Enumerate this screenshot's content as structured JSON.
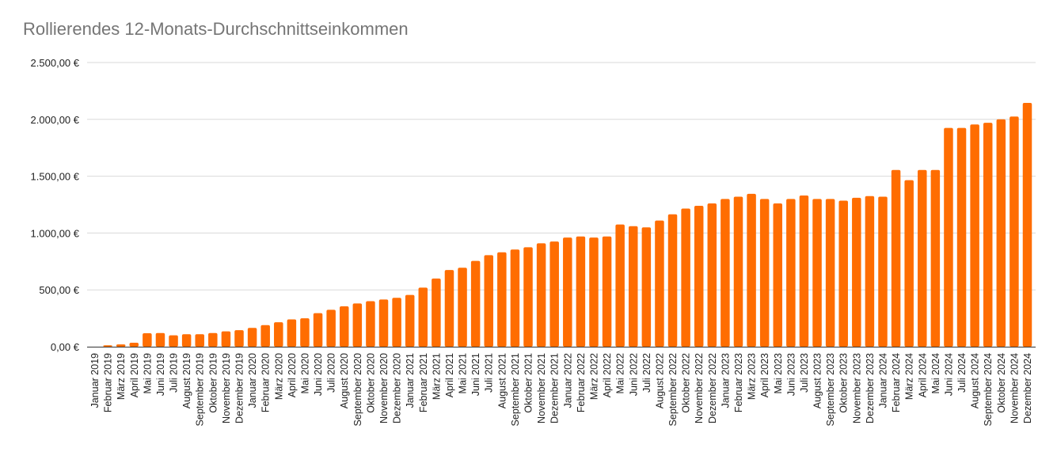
{
  "chart_data": {
    "type": "bar",
    "title": "Rollierendes 12-Monats-Durchschnittseinkommen",
    "xlabel": "",
    "ylabel": "",
    "ylim": [
      0,
      2500
    ],
    "y_ticks": [
      0,
      500,
      1000,
      1500,
      2000,
      2500
    ],
    "y_tick_labels": [
      "0,00 €",
      "500,00 €",
      "1.000,00 €",
      "1.500,00 €",
      "2.000,00 €",
      "2.500,00 €"
    ],
    "grid": true,
    "legend": "none",
    "bar_color": "#ff6d01",
    "categories": [
      "Januar 2019",
      "Februar 2019",
      "März 2019",
      "April 2019",
      "Mai 2019",
      "Juni 2019",
      "Juli 2019",
      "August 2019",
      "September 2019",
      "Oktober 2019",
      "November 2019",
      "Dezember 2019",
      "Januar 2020",
      "Februar 2020",
      "März 2020",
      "April 2020",
      "Mai 2020",
      "Juni 2020",
      "Juli 2020",
      "August 2020",
      "September 2020",
      "Oktober 2020",
      "November 2020",
      "Dezember 2020",
      "Januar 2021",
      "Februar 2021",
      "März 2021",
      "April 2021",
      "Mai 2021",
      "Juni 2021",
      "Juli 2021",
      "August 2021",
      "September 2021",
      "Oktober 2021",
      "November 2021",
      "Dezember 2021",
      "Januar 2022",
      "Februar 2022",
      "März 2022",
      "April 2022",
      "Mai 2022",
      "Juni 2022",
      "Juli 2022",
      "August 2022",
      "September 2022",
      "Oktober 2022",
      "November 2022",
      "Dezember 2022",
      "Januar 2023",
      "Februar 2023",
      "März 2023",
      "April 2023",
      "Mai 2023",
      "Juni 2023",
      "Juli 2023",
      "August 2023",
      "September 2023",
      "Oktober 2023",
      "November 2023",
      "Dezember 2023",
      "Januar 2024",
      "Februar 2024",
      "März 2024",
      "April 2024",
      "Mai 2024",
      "Juni 2024",
      "Juli 2024",
      "August 2024",
      "September 2024",
      "Oktober 2024",
      "November 2024",
      "Dezember 2024"
    ],
    "values": [
      0,
      12,
      20,
      35,
      118,
      120,
      100,
      110,
      110,
      120,
      135,
      145,
      165,
      190,
      215,
      240,
      250,
      295,
      325,
      355,
      380,
      400,
      415,
      430,
      455,
      520,
      600,
      675,
      695,
      755,
      805,
      830,
      855,
      875,
      910,
      925,
      960,
      970,
      960,
      970,
      1075,
      1060,
      1050,
      1110,
      1165,
      1215,
      1240,
      1260,
      1300,
      1320,
      1345,
      1300,
      1260,
      1300,
      1330,
      1300,
      1300,
      1285,
      1310,
      1325,
      1320,
      1555,
      1465,
      1555,
      1555,
      1925,
      1925,
      1955,
      1970,
      2000,
      2025,
      2145
    ]
  }
}
